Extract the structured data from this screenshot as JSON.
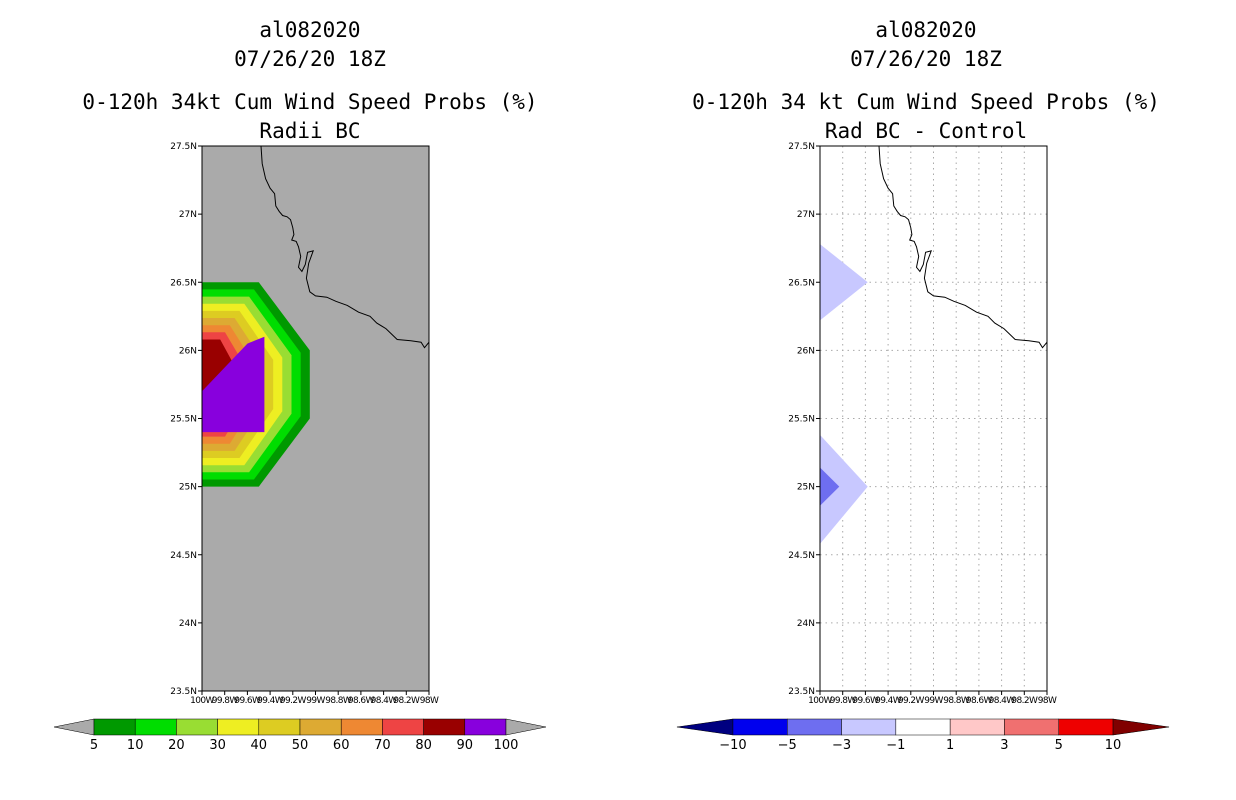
{
  "left_panel": {
    "storm_id": "al082020",
    "datetime": "07/26/20 18Z",
    "title": "0-120h 34kt Cum Wind Speed Probs (%)",
    "subtitle": "Radii BC"
  },
  "right_panel": {
    "storm_id": "al082020",
    "datetime": "07/26/20 18Z",
    "title": "0-120h 34 kt Cum Wind Speed Probs (%)",
    "subtitle": "Rad BC - Control"
  },
  "chart_data": [
    {
      "type": "heatmap",
      "panel": "left",
      "title": "0-120h 34kt Cum Wind Speed Probs (%)",
      "subtitle": "Radii BC",
      "xlabel": "",
      "ylabel": "",
      "xlim": [
        -100,
        -98
      ],
      "ylim": [
        23.5,
        27.5
      ],
      "x_tick_values": [
        -100,
        -99.8,
        -99.6,
        -99.4,
        -99.2,
        -99,
        -98.8,
        -98.6,
        -98.4,
        -98.2,
        -98
      ],
      "x_tick_labels": [
        "100W",
        "99.8W",
        "99.6W",
        "99.4W",
        "99.2W",
        "99W",
        "98.8W",
        "98.6W",
        "98.4W",
        "98.2W",
        "98W"
      ],
      "y_tick_values": [
        23.5,
        24,
        24.5,
        25,
        25.5,
        26,
        26.5,
        27,
        27.5
      ],
      "y_tick_labels": [
        "23.5N",
        "24N",
        "24.5N",
        "25N",
        "25.5N",
        "26N",
        "26.5N",
        "27N",
        "27.5N"
      ],
      "background_color": "#aaaaaa",
      "grid": false,
      "contour_ring": {
        "lon": [
          -100,
          -99.5,
          -99.05,
          -99.05,
          -99.5,
          -100
        ],
        "lat": [
          26.5,
          26.5,
          26.0,
          25.5,
          25.0,
          25.0
        ]
      },
      "max_region": {
        "lon": [
          -100,
          -99.6,
          -99.45,
          -99.45,
          -100
        ],
        "lat": [
          25.7,
          26.05,
          26.1,
          25.4,
          25.4
        ]
      },
      "colorbar": {
        "boundaries": [
          5,
          10,
          20,
          30,
          40,
          50,
          60,
          70,
          80,
          90,
          100
        ],
        "colors": [
          "#009900",
          "#00dd00",
          "#99dd33",
          "#eeee22",
          "#ddcc22",
          "#ddaa33",
          "#ee8833",
          "#ee4444",
          "#990000",
          "#8800dd"
        ],
        "under_color": "#aaaaaa",
        "over_color": "#aaaaaa"
      }
    },
    {
      "type": "heatmap",
      "panel": "right",
      "title": "0-120h 34 kt Cum Wind Speed Probs (%)",
      "subtitle": "Rad BC - Control",
      "xlabel": "",
      "ylabel": "",
      "xlim": [
        -100,
        -98
      ],
      "ylim": [
        23.5,
        27.5
      ],
      "x_tick_values": [
        -100,
        -99.8,
        -99.6,
        -99.4,
        -99.2,
        -99,
        -98.8,
        -98.6,
        -98.4,
        -98.2,
        -98
      ],
      "x_tick_labels": [
        "100W",
        "99.8W",
        "99.6W",
        "99.4W",
        "99.2W",
        "99W",
        "98.8W",
        "98.6W",
        "98.4W",
        "98.2W",
        "98W"
      ],
      "y_tick_values": [
        23.5,
        24,
        24.5,
        25,
        25.5,
        26,
        26.5,
        27,
        27.5
      ],
      "y_tick_labels": [
        "23.5N",
        "24N",
        "24.5N",
        "25N",
        "25.5N",
        "26N",
        "26.5N",
        "27N",
        "27.5N"
      ],
      "background_color": "#ffffff",
      "grid": true,
      "anomalies": [
        {
          "range": [
            -3,
            -1
          ],
          "color": "#c8c8ff",
          "lon": [
            -100,
            -99.58,
            -100
          ],
          "lat": [
            26.78,
            26.5,
            26.22
          ]
        },
        {
          "range": [
            -3,
            -1
          ],
          "color": "#c8c8ff",
          "lon": [
            -100,
            -99.58,
            -100
          ],
          "lat": [
            25.38,
            25.0,
            24.58
          ]
        },
        {
          "range": [
            -5,
            -3
          ],
          "color": "#6e6ef0",
          "lon": [
            -100,
            -99.83,
            -100
          ],
          "lat": [
            25.14,
            25.0,
            24.86
          ]
        }
      ],
      "colorbar": {
        "boundaries": [
          -10,
          -5,
          -3,
          -1,
          1,
          3,
          5,
          10
        ],
        "colors": [
          "#0000ee",
          "#6e6ef0",
          "#c8c8ff",
          "#ffffff",
          "#ffc8c8",
          "#f07070",
          "#ee0000"
        ],
        "under_color": "#000080",
        "over_color": "#800000"
      }
    }
  ]
}
